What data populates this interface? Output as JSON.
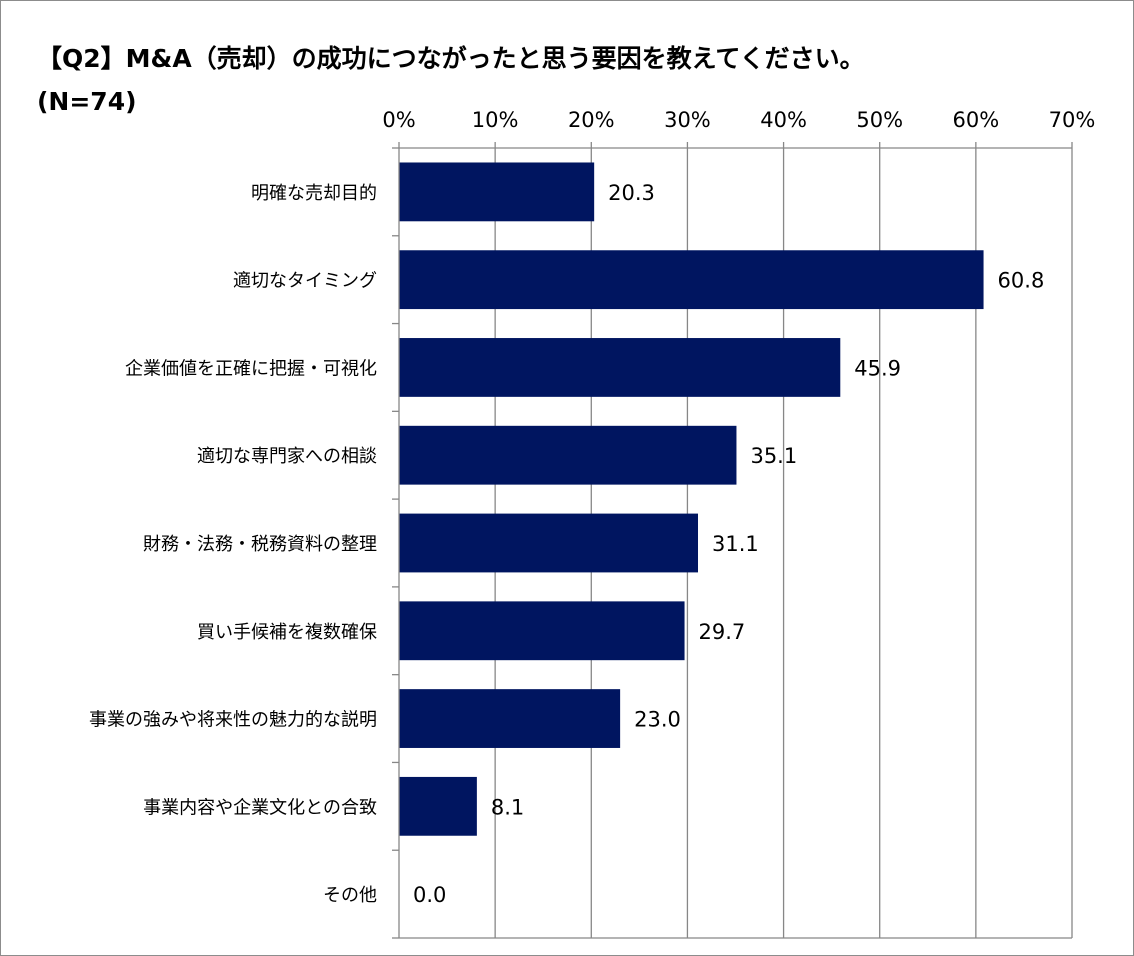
{
  "chart_data": {
    "type": "bar",
    "orientation": "horizontal",
    "title": "【Q2】M&A（売却）の成功につながったと思う要因を教えてください。",
    "subtitle": "(N=74)",
    "categories": [
      "明確な売却目的",
      "適切なタイミング",
      "企業価値を正確に把握・可視化",
      "適切な専門家への相談",
      "財務・法務・税務資料の整理",
      "買い手候補を複数確保",
      "事業の強みや将来性の魅力的な説明",
      "事業内容や企業文化との合致",
      "その他"
    ],
    "values": [
      20.3,
      60.8,
      45.9,
      35.1,
      31.1,
      29.7,
      23.0,
      8.1,
      0.0
    ],
    "data_labels": [
      "20.3",
      "60.8",
      "45.9",
      "35.1",
      "31.1",
      "29.7",
      "23.0",
      "8.1",
      "0.0"
    ],
    "xlim": [
      0,
      70
    ],
    "x_ticks": [
      "0%",
      "10%",
      "20%",
      "30%",
      "40%",
      "50%",
      "60%",
      "70%"
    ],
    "x_axis_position": "top",
    "grid": true,
    "bar_color": "#001560"
  }
}
